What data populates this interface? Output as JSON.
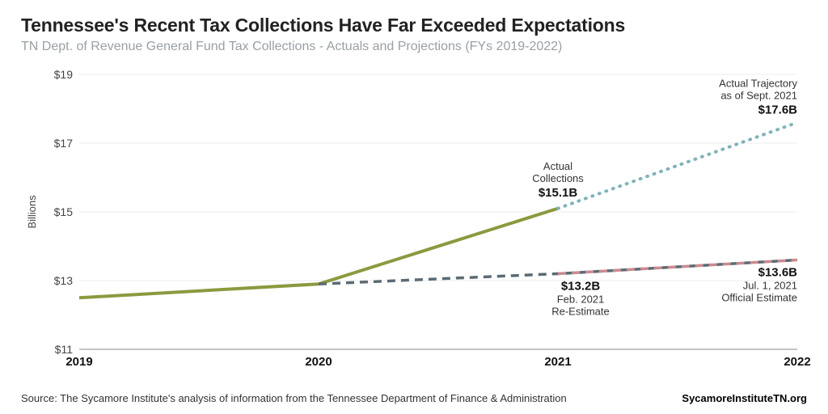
{
  "header": {
    "title": "Tennessee's Recent Tax Collections Have Far Exceeded Expectations",
    "subtitle": "TN Dept. of Revenue General Fund Tax Collections - Actuals and Projections (FYs 2019-2022)"
  },
  "footer": {
    "source": "Source: The Sycamore Institute's analysis of information from the Tennessee Department of Finance & Administration",
    "brand": "SycamoreInstituteTN.org"
  },
  "chart": {
    "type": "line",
    "background": "#ffffff",
    "y_axis": {
      "label": "Billions",
      "min": 11,
      "max": 19,
      "ticks": [
        11,
        13,
        15,
        17,
        19
      ],
      "tick_labels": [
        "$11",
        "$13",
        "$15",
        "$17",
        "$19"
      ],
      "grid_color": "#eeeeee",
      "label_color": "#555555"
    },
    "x_axis": {
      "min": 2019,
      "max": 2022,
      "ticks": [
        2019,
        2020,
        2021,
        2022
      ],
      "tick_labels": [
        "2019",
        "2020",
        "2021",
        "2022"
      ]
    },
    "series": [
      {
        "name": "actual",
        "color": "#8a9a3f",
        "stroke_width": 4,
        "dash": "none",
        "points": [
          {
            "x": 2019,
            "y": 12.5
          },
          {
            "x": 2020,
            "y": 12.9
          },
          {
            "x": 2021,
            "y": 15.1
          }
        ]
      },
      {
        "name": "re_estimate",
        "color": "#5b6b75",
        "stroke_width": 3.5,
        "dash": "10,7",
        "points": [
          {
            "x": 2020,
            "y": 12.9
          },
          {
            "x": 2021,
            "y": 13.2
          },
          {
            "x": 2022,
            "y": 13.6
          }
        ]
      },
      {
        "name": "official_estimate",
        "color": "#c98b8f",
        "stroke_width": 3.5,
        "dash": "10,7",
        "points": [
          {
            "x": 2021,
            "y": 13.2
          },
          {
            "x": 2022,
            "y": 13.6
          }
        ]
      },
      {
        "name": "actual_trajectory",
        "color": "#7fb3b8",
        "stroke_width": 4,
        "dash": "1,8",
        "linecap": "round",
        "points": [
          {
            "x": 2021,
            "y": 15.1
          },
          {
            "x": 2022,
            "y": 17.6
          }
        ]
      }
    ],
    "annotations": {
      "actual_collections": {
        "line1": "Actual",
        "line2": "Collections",
        "value": "$15.1B"
      },
      "re_estimate": {
        "value": "$13.2B",
        "line1": "Feb. 2021",
        "line2": "Re-Estimate"
      },
      "official_estimate": {
        "value": "$13.6B",
        "line1": "Jul. 1, 2021",
        "line2": "Official Estimate"
      },
      "actual_trajectory": {
        "line1": "Actual Trajectory",
        "line2": "as of Sept. 2021",
        "value": "$17.6B"
      }
    }
  }
}
